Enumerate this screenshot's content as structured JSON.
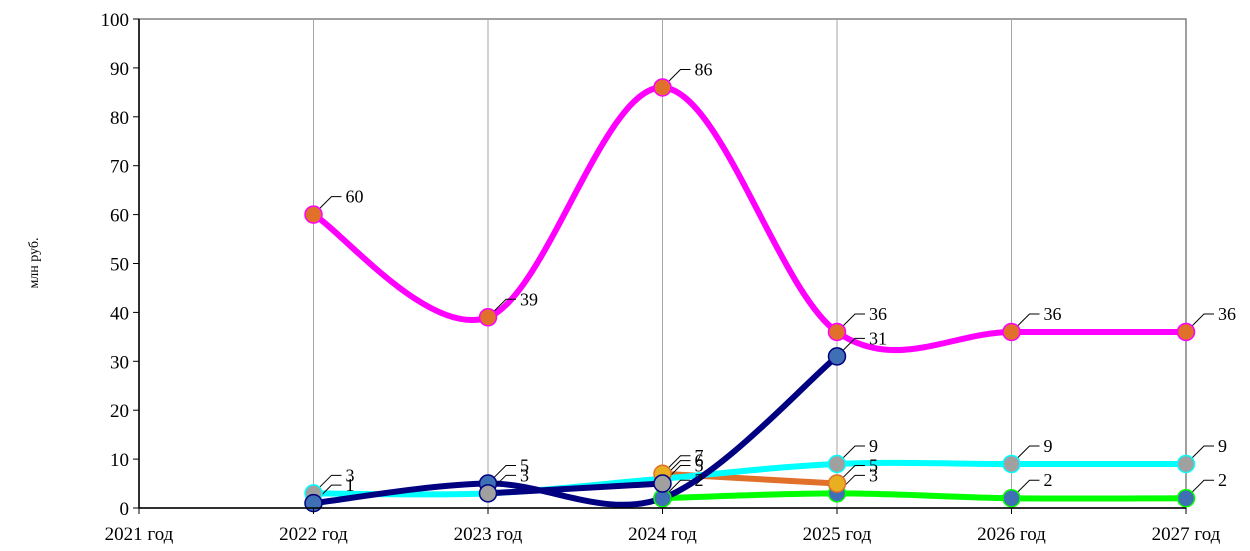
{
  "chart_data": {
    "type": "line",
    "title": "",
    "xlabel": "",
    "ylabel": "млн руб.",
    "categories": [
      "2021 год",
      "2022 год",
      "2023 год",
      "2024 год",
      "2025 год",
      "2026 год",
      "2027 год"
    ],
    "ylim": [
      0,
      100
    ],
    "yticks": [
      "0",
      "10",
      "20",
      "30",
      "40",
      "50",
      "60",
      "70",
      "80",
      "90",
      "100"
    ],
    "grid": "vertical",
    "legend": "none",
    "series": [
      {
        "color": "#ff00ff",
        "marker_color": "#e0702a",
        "values": [
          null,
          60,
          39,
          86,
          36,
          36,
          36
        ],
        "labels": [
          null,
          "60",
          "39",
          "86",
          "36",
          "36",
          "36"
        ]
      },
      {
        "color": "#00ffff",
        "marker_color": "#a0a0a0",
        "values": [
          null,
          3,
          3,
          6,
          9,
          9,
          9
        ],
        "labels": [
          null,
          "3",
          "",
          "6",
          "9",
          "9",
          "9"
        ]
      },
      {
        "color": "#000080",
        "marker_color": "#3f6fb5",
        "values": [
          null,
          1,
          5,
          2,
          31,
          null,
          null
        ],
        "labels": [
          null,
          "1",
          "5",
          "",
          "31",
          "",
          ""
        ]
      },
      {
        "color": "#00ff00",
        "marker_color": "#3f6fb5",
        "values": [
          null,
          null,
          null,
          2,
          3,
          2,
          2
        ],
        "labels": [
          null,
          "",
          "",
          "2",
          "3",
          "2",
          "2"
        ]
      },
      {
        "color": "#e0702a",
        "marker_color": "#e8b020",
        "values": [
          null,
          null,
          null,
          7,
          5,
          null,
          null
        ],
        "labels": [
          null,
          "",
          "",
          "7",
          "5",
          "",
          ""
        ]
      },
      {
        "color": "#000080",
        "marker_color": "#a0a0a0",
        "values": [
          null,
          null,
          3,
          5,
          null,
          null,
          null
        ],
        "labels": [
          null,
          "",
          "3",
          "5",
          "",
          "",
          ""
        ]
      }
    ]
  }
}
